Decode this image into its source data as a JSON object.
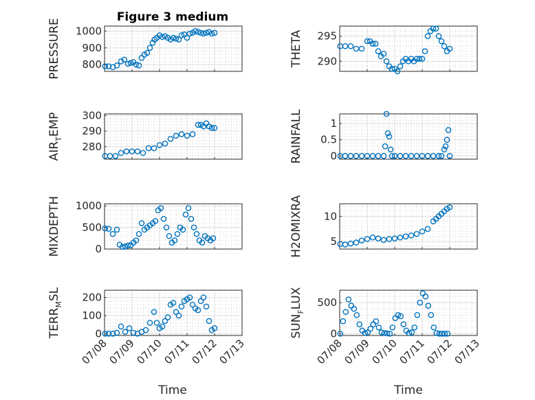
{
  "figure": {
    "title": "Figure 3 medium"
  },
  "colors": {
    "marker": "#0072BD",
    "axis": "#262626",
    "grid": "#d0d0d0"
  },
  "chart_data": [
    {
      "id": "pressure",
      "type": "scatter",
      "ylabel": {
        "main": "PRESSURE",
        "sub": "",
        "tail": ""
      },
      "ylim": [
        760,
        1030
      ],
      "yticks": [
        800,
        900,
        1000
      ],
      "ytick_labels": [
        "800",
        "900",
        "1000"
      ],
      "xlim": [
        0,
        5
      ],
      "grid": true,
      "xtick_labels": [],
      "x": [
        0.02,
        0.15,
        0.3,
        0.45,
        0.6,
        0.72,
        0.85,
        0.95,
        1.05,
        1.15,
        1.25,
        1.35,
        1.45,
        1.55,
        1.65,
        1.75,
        1.82,
        1.9,
        2.0,
        2.1,
        2.2,
        2.3,
        2.4,
        2.5,
        2.6,
        2.7,
        2.8,
        2.9,
        3.0,
        3.1,
        3.2,
        3.3,
        3.4,
        3.5,
        3.6,
        3.7,
        3.8,
        3.9,
        4.0
      ],
      "y": [
        790,
        790,
        785,
        795,
        820,
        830,
        805,
        810,
        815,
        800,
        795,
        840,
        860,
        870,
        900,
        930,
        950,
        960,
        975,
        965,
        970,
        960,
        950,
        960,
        955,
        950,
        975,
        980,
        960,
        985,
        990,
        1000,
        995,
        990,
        985,
        990,
        995,
        985,
        990
      ]
    },
    {
      "id": "theta",
      "type": "scatter",
      "ylabel": {
        "main": "THETA",
        "sub": "",
        "tail": ""
      },
      "ylim": [
        288,
        297
      ],
      "yticks": [
        290,
        295
      ],
      "ytick_labels": [
        "290",
        "295"
      ],
      "xlim": [
        0,
        5
      ],
      "grid": true,
      "xtick_labels": [],
      "x": [
        0.02,
        0.2,
        0.4,
        0.6,
        0.8,
        1.0,
        1.1,
        1.2,
        1.3,
        1.4,
        1.5,
        1.6,
        1.7,
        1.8,
        1.9,
        2.0,
        2.1,
        2.2,
        2.3,
        2.4,
        2.5,
        2.6,
        2.7,
        2.8,
        2.9,
        3.0,
        3.1,
        3.2,
        3.3,
        3.4,
        3.5,
        3.6,
        3.7,
        3.8,
        3.9,
        4.0
      ],
      "y": [
        293,
        293,
        293,
        292.5,
        292.5,
        294,
        294,
        293.5,
        293.5,
        292,
        291,
        291.5,
        290,
        289,
        288.5,
        288.5,
        288,
        289,
        290,
        290.5,
        290,
        290.5,
        290,
        290.5,
        290.5,
        290.5,
        292,
        295,
        296,
        296.5,
        296.5,
        295,
        294,
        293,
        292,
        292.5
      ]
    },
    {
      "id": "air_temp",
      "type": "scatter",
      "ylabel": {
        "main": "AIR",
        "sub": "T",
        "tail": "EMP"
      },
      "ylim": [
        272,
        301
      ],
      "yticks": [
        280,
        290,
        300
      ],
      "ytick_labels": [
        "280",
        "290",
        "300"
      ],
      "xlim": [
        0,
        5
      ],
      "grid": true,
      "xtick_labels": [],
      "x": [
        0.02,
        0.2,
        0.4,
        0.6,
        0.8,
        1.0,
        1.2,
        1.4,
        1.6,
        1.8,
        2.0,
        2.2,
        2.4,
        2.6,
        2.8,
        3.0,
        3.2,
        3.4,
        3.5,
        3.6,
        3.7,
        3.8,
        3.9,
        4.0
      ],
      "y": [
        274,
        274,
        274,
        276,
        277,
        277,
        277,
        276,
        279,
        279,
        281,
        282,
        285,
        287,
        288,
        287,
        288,
        294,
        294,
        293,
        295,
        293,
        292,
        292
      ]
    },
    {
      "id": "rainfall",
      "type": "scatter",
      "ylabel": {
        "main": "RAINFALL",
        "sub": "",
        "tail": ""
      },
      "ylim": [
        -0.1,
        1.3
      ],
      "yticks": [
        0,
        0.5,
        1
      ],
      "ytick_labels": [
        "0",
        "0.5",
        "1"
      ],
      "xlim": [
        0,
        5
      ],
      "grid": true,
      "xtick_labels": [],
      "x": [
        0.02,
        0.2,
        0.4,
        0.6,
        0.8,
        1.0,
        1.2,
        1.4,
        1.6,
        1.65,
        1.7,
        1.75,
        1.8,
        1.85,
        1.9,
        2.0,
        2.2,
        2.4,
        2.6,
        2.8,
        3.0,
        3.2,
        3.4,
        3.6,
        3.7,
        3.8,
        3.85,
        3.9,
        3.95,
        4.0
      ],
      "y": [
        0,
        0,
        0,
        0,
        0,
        0,
        0,
        0,
        0,
        0.3,
        1.3,
        0.7,
        0.6,
        0.2,
        0,
        0,
        0,
        0,
        0,
        0,
        0,
        0,
        0,
        0,
        0,
        0.2,
        0.3,
        0.5,
        0.8,
        0
      ]
    },
    {
      "id": "mixdepth",
      "type": "scatter",
      "ylabel": {
        "main": "MIXDEPTH",
        "sub": "",
        "tail": ""
      },
      "ylim": [
        0,
        1050
      ],
      "yticks": [
        0,
        500,
        1000
      ],
      "ytick_labels": [
        "0",
        "500",
        "1000"
      ],
      "xlim": [
        0,
        5
      ],
      "grid": true,
      "xtick_labels": [],
      "x": [
        0.02,
        0.15,
        0.3,
        0.45,
        0.55,
        0.65,
        0.75,
        0.85,
        0.95,
        1.05,
        1.15,
        1.25,
        1.35,
        1.45,
        1.55,
        1.65,
        1.75,
        1.85,
        1.95,
        2.05,
        2.15,
        2.25,
        2.35,
        2.45,
        2.55,
        2.65,
        2.75,
        2.85,
        2.95,
        3.05,
        3.15,
        3.25,
        3.35,
        3.45,
        3.55,
        3.65,
        3.75,
        3.85,
        3.95
      ],
      "y": [
        480,
        470,
        350,
        450,
        100,
        50,
        60,
        80,
        90,
        150,
        200,
        350,
        600,
        450,
        500,
        550,
        600,
        650,
        900,
        950,
        700,
        500,
        300,
        150,
        200,
        350,
        500,
        450,
        800,
        950,
        700,
        500,
        350,
        200,
        150,
        300,
        250,
        200,
        250
      ]
    },
    {
      "id": "h2omixra",
      "type": "scatter",
      "ylabel": {
        "main": "H2OMIXRA",
        "sub": "",
        "tail": ""
      },
      "ylim": [
        3.5,
        12.5
      ],
      "yticks": [
        5,
        10
      ],
      "ytick_labels": [
        "5",
        "10"
      ],
      "xlim": [
        0,
        5
      ],
      "grid": true,
      "xtick_labels": [],
      "x": [
        0.02,
        0.2,
        0.4,
        0.6,
        0.8,
        1.0,
        1.2,
        1.4,
        1.6,
        1.8,
        2.0,
        2.2,
        2.4,
        2.6,
        2.8,
        3.0,
        3.2,
        3.4,
        3.5,
        3.6,
        3.7,
        3.8,
        3.9,
        4.0
      ],
      "y": [
        4.5,
        4.4,
        4.6,
        4.8,
        5.2,
        5.5,
        5.8,
        5.6,
        5.3,
        5.5,
        5.6,
        5.8,
        6.0,
        6.2,
        6.5,
        7.0,
        7.5,
        9.0,
        9.5,
        10.0,
        10.5,
        11.0,
        11.5,
        11.8
      ]
    },
    {
      "id": "terr_msl",
      "type": "scatter",
      "ylabel": {
        "main": "TERR",
        "sub": "M",
        "tail": "SL"
      },
      "ylim": [
        -10,
        240
      ],
      "yticks": [
        0,
        100,
        200
      ],
      "ytick_labels": [
        "0",
        "100",
        "200"
      ],
      "xlim": [
        0,
        5
      ],
      "grid": true,
      "xtick_labels": [
        "07/08",
        "07/09",
        "07/10",
        "07/11",
        "07/12",
        "07/13"
      ],
      "x": [
        0.02,
        0.15,
        0.3,
        0.45,
        0.6,
        0.75,
        0.9,
        1.05,
        1.2,
        1.35,
        1.5,
        1.65,
        1.8,
        1.9,
        2.0,
        2.1,
        2.2,
        2.3,
        2.4,
        2.5,
        2.6,
        2.7,
        2.8,
        2.9,
        3.0,
        3.1,
        3.2,
        3.3,
        3.4,
        3.5,
        3.6,
        3.7,
        3.8,
        3.9,
        4.0
      ],
      "y": [
        0,
        0,
        0,
        5,
        40,
        10,
        30,
        5,
        0,
        10,
        20,
        60,
        120,
        60,
        30,
        40,
        70,
        90,
        160,
        170,
        120,
        100,
        150,
        180,
        190,
        200,
        160,
        140,
        130,
        180,
        200,
        150,
        70,
        20,
        30
      ]
    },
    {
      "id": "sun_flux",
      "type": "scatter",
      "ylabel": {
        "main": "SUN",
        "sub": "F",
        "tail": "LUX"
      },
      "ylim": [
        -30,
        700
      ],
      "yticks": [
        0,
        500
      ],
      "ytick_labels": [
        "0",
        "500"
      ],
      "xlim": [
        0,
        5
      ],
      "grid": true,
      "xtick_labels": [
        "07/08",
        "07/09",
        "07/10",
        "07/11",
        "07/12",
        "07/13"
      ],
      "x": [
        0.02,
        0.12,
        0.22,
        0.32,
        0.42,
        0.52,
        0.62,
        0.72,
        0.82,
        0.92,
        1.02,
        1.12,
        1.22,
        1.32,
        1.42,
        1.52,
        1.62,
        1.72,
        1.82,
        1.92,
        2.02,
        2.12,
        2.22,
        2.32,
        2.42,
        2.52,
        2.62,
        2.72,
        2.82,
        2.92,
        3.02,
        3.12,
        3.22,
        3.32,
        3.42,
        3.52,
        3.62,
        3.72,
        3.82,
        3.92
      ],
      "y": [
        0,
        200,
        350,
        550,
        450,
        400,
        300,
        150,
        50,
        10,
        20,
        80,
        150,
        200,
        100,
        20,
        10,
        5,
        0,
        100,
        250,
        300,
        280,
        150,
        50,
        10,
        20,
        100,
        300,
        500,
        650,
        600,
        450,
        300,
        100,
        10,
        0,
        0,
        0,
        0
      ]
    }
  ],
  "x_axis_label": "Time"
}
